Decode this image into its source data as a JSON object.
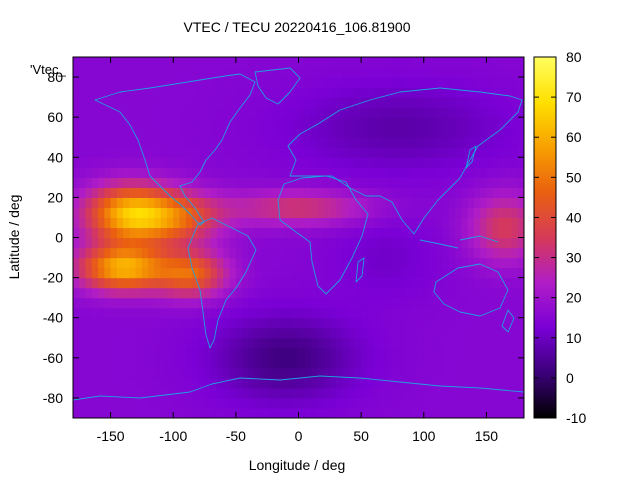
{
  "chart_data": {
    "type": "heatmap",
    "title": "VTEC / TECU 20220416_106.81900",
    "xlabel": "Longitude / deg",
    "ylabel": "Latitude / deg",
    "key_label": "'Vtec_",
    "xlim": [
      -180,
      180
    ],
    "ylim": [
      -90,
      90
    ],
    "xticks": [
      -150,
      -100,
      -50,
      0,
      50,
      100,
      150
    ],
    "yticks": [
      -80,
      -60,
      -40,
      -20,
      0,
      20,
      40,
      60,
      80
    ],
    "colorbar": {
      "range": [
        -10,
        80
      ],
      "ticks": [
        -10,
        0,
        10,
        20,
        30,
        40,
        50,
        60,
        70,
        80
      ]
    },
    "palette": [
      "#000000",
      "#3b007a",
      "#7a00d6",
      "#b01dc6",
      "#d63a58",
      "#ea6010",
      "#f7a000",
      "#ffe000",
      "#ffff60"
    ],
    "base_tec": 15,
    "enhancements": [
      {
        "lon": -135,
        "lat": 12,
        "tec": 45,
        "sx": 25,
        "sy": 10
      },
      {
        "lon": -140,
        "lat": -15,
        "tec": 45,
        "sx": 25,
        "sy": 8
      },
      {
        "lon": -85,
        "lat": -18,
        "tec": 30,
        "sx": 20,
        "sy": 8
      },
      {
        "lon": -95,
        "lat": 10,
        "tec": 25,
        "sx": 25,
        "sy": 9
      },
      {
        "lon": 0,
        "lat": 15,
        "tec": 18,
        "sx": 40,
        "sy": 6
      },
      {
        "lon": 165,
        "lat": 5,
        "tec": 20,
        "sx": 20,
        "sy": 12
      }
    ],
    "depletions": [
      {
        "lon": -10,
        "lat": -60,
        "tec": 13,
        "sx": 40,
        "sy": 15
      },
      {
        "lon": 80,
        "lat": 55,
        "tec": 8,
        "sx": 60,
        "sy": 15
      },
      {
        "lon": 70,
        "lat": -10,
        "tec": 4,
        "sx": 30,
        "sy": 15
      }
    ]
  }
}
